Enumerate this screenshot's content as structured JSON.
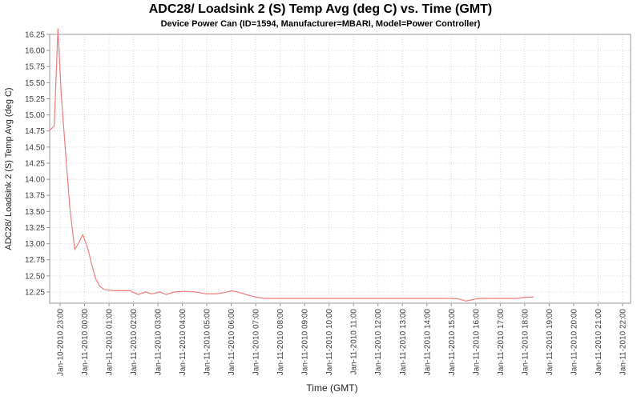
{
  "chart_data": {
    "type": "line",
    "title": "ADC28/ Loadsink 2 (S) Temp Avg (deg C) vs. Time (GMT)",
    "subtitle": "Device Power Can (ID=1594, Manufacturer=MBARI, Model=Power Controller)",
    "xlabel": "Time (GMT)",
    "ylabel": "ADC28/ Loadsink 2 (S) Temp Avg (deg C)",
    "x_unit": "hours since Jan-10-2010 00:00 GMT",
    "xlim": [
      22.574,
      46.33
    ],
    "ylim": [
      12.076,
      16.25
    ],
    "grid": true,
    "legend": "none",
    "x_ticks": {
      "values": [
        23,
        24,
        25,
        26,
        27,
        28,
        29,
        30,
        31,
        32,
        33,
        34,
        35,
        36,
        37,
        38,
        39,
        40,
        41,
        42,
        43,
        44,
        45,
        46
      ],
      "labels": [
        "Jan-10-2010 23:00",
        "Jan-11-2010 00:00",
        "Jan-11-2010 01:00",
        "Jan-11-2010 02:00",
        "Jan-11-2010 03:00",
        "Jan-11-2010 04:00",
        "Jan-11-2010 05:00",
        "Jan-11-2010 06:00",
        "Jan-11-2010 07:00",
        "Jan-11-2010 08:00",
        "Jan-11-2010 09:00",
        "Jan-11-2010 10:00",
        "Jan-11-2010 11:00",
        "Jan-11-2010 12:00",
        "Jan-11-2010 13:00",
        "Jan-11-2010 14:00",
        "Jan-11-2010 15:00",
        "Jan-11-2010 16:00",
        "Jan-11-2010 17:00",
        "Jan-11-2010 18:00",
        "Jan-11-2010 19:00",
        "Jan-11-2010 20:00",
        "Jan-11-2010 21:00",
        "Jan-11-2010 22:00"
      ]
    },
    "y_ticks": [
      12.25,
      12.5,
      12.75,
      13.0,
      13.25,
      13.5,
      13.75,
      14.0,
      14.25,
      14.5,
      14.75,
      15.0,
      15.25,
      15.5,
      15.75,
      16.0,
      16.25
    ],
    "series": [
      {
        "name": "ADC28/ Loadsink 2 (S) Temp Avg",
        "color": "#ee7d7d",
        "points": [
          [
            22.57,
            14.76
          ],
          [
            22.66,
            14.79
          ],
          [
            22.76,
            14.83
          ],
          [
            22.91,
            16.34
          ],
          [
            23.05,
            15.3
          ],
          [
            23.21,
            14.49
          ],
          [
            23.4,
            13.55
          ],
          [
            23.6,
            12.91
          ],
          [
            23.77,
            13.02
          ],
          [
            23.93,
            13.14
          ],
          [
            24.13,
            12.93
          ],
          [
            24.29,
            12.68
          ],
          [
            24.45,
            12.46
          ],
          [
            24.62,
            12.34
          ],
          [
            24.8,
            12.29
          ],
          [
            25.2,
            12.27
          ],
          [
            25.87,
            12.27
          ],
          [
            26.19,
            12.21
          ],
          [
            26.49,
            12.25
          ],
          [
            26.75,
            12.22
          ],
          [
            27.08,
            12.25
          ],
          [
            27.34,
            12.21
          ],
          [
            27.67,
            12.25
          ],
          [
            28.06,
            12.26
          ],
          [
            28.56,
            12.25
          ],
          [
            28.98,
            12.22
          ],
          [
            29.38,
            12.22
          ],
          [
            29.71,
            12.24
          ],
          [
            30.03,
            12.27
          ],
          [
            30.36,
            12.24
          ],
          [
            30.69,
            12.2
          ],
          [
            31.02,
            12.17
          ],
          [
            31.35,
            12.15
          ],
          [
            32.0,
            12.15
          ],
          [
            33.0,
            12.15
          ],
          [
            34.0,
            12.15
          ],
          [
            35.0,
            12.15
          ],
          [
            36.0,
            12.15
          ],
          [
            37.0,
            12.15
          ],
          [
            38.0,
            12.15
          ],
          [
            39.0,
            12.15
          ],
          [
            39.3,
            12.14
          ],
          [
            39.6,
            12.11
          ],
          [
            40.1,
            12.15
          ],
          [
            41.0,
            12.15
          ],
          [
            41.7,
            12.15
          ],
          [
            42.1,
            12.17
          ],
          [
            42.35,
            12.17
          ]
        ]
      }
    ],
    "colors": {
      "background": "#ffffff",
      "plot_border": "#999999",
      "gridline": "#d8d8d8",
      "tick_label": "#3f3f3f",
      "axis_label": "#222222",
      "title": "#000000"
    }
  }
}
